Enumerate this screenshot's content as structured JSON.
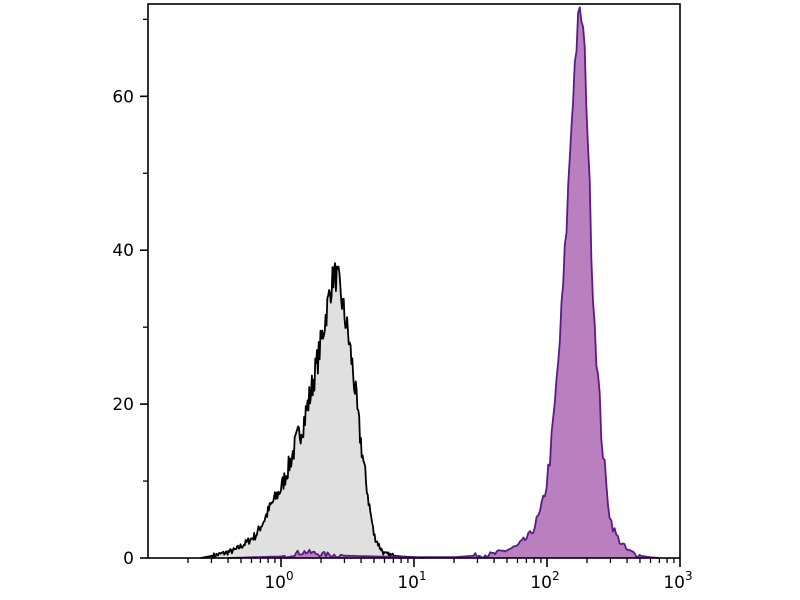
{
  "chart_data": {
    "type": "area",
    "title": "",
    "xlabel": "",
    "ylabel": "",
    "x_scale": "log",
    "xlim": [
      0.1,
      1000
    ],
    "ylim": [
      0,
      72
    ],
    "grid": false,
    "legend": "none",
    "x_ticks": [
      {
        "value": 1,
        "base": "10",
        "exp": "0"
      },
      {
        "value": 10,
        "base": "10",
        "exp": "1"
      },
      {
        "value": 100,
        "base": "10",
        "exp": "2"
      },
      {
        "value": 1000,
        "base": "10",
        "exp": "3"
      }
    ],
    "y_ticks": [
      {
        "value": 0,
        "label": "0"
      },
      {
        "value": 20,
        "label": "20"
      },
      {
        "value": 40,
        "label": "40"
      },
      {
        "value": 60,
        "label": "60"
      }
    ],
    "series": [
      {
        "style": "control",
        "fill": "#e0e0e0",
        "stroke": "#000000",
        "x": [
          0.25,
          0.35,
          0.45,
          0.55,
          0.65,
          0.75,
          0.85,
          1.0,
          1.15,
          1.3,
          1.5,
          1.7,
          1.9,
          2.1,
          2.3,
          2.5,
          2.7,
          2.9,
          3.2,
          3.5,
          3.8,
          4.2,
          4.6,
          5.0,
          5.5,
          6.0,
          7.0,
          8.0,
          10.0,
          12.0
        ],
        "y": [
          0,
          0.5,
          1,
          2,
          3,
          5,
          7,
          9,
          12,
          15,
          18,
          22,
          26,
          30,
          34,
          37,
          36,
          33,
          29,
          24,
          18,
          12,
          7,
          3,
          1.5,
          0.5,
          0.3,
          0.2,
          0.1,
          0
        ]
      },
      {
        "style": "sample",
        "fill": "#b97fbe",
        "stroke": "#5b1a86",
        "x": [
          0.4,
          1.0,
          1.5,
          2.0,
          3.0,
          5.0,
          10.0,
          20.0,
          40.0,
          60.0,
          75.0,
          90.0,
          100.0,
          110.0,
          120.0,
          130.0,
          140.0,
          150.0,
          160.0,
          170.0,
          180.0,
          190.0,
          200.0,
          210.0,
          220.0,
          240.0,
          260.0,
          280.0,
          300.0,
          330.0,
          360.0,
          400.0,
          450.0,
          500.0,
          600.0,
          700.0
        ],
        "y": [
          0,
          0.2,
          0.8,
          0.5,
          0.3,
          0.2,
          0.1,
          0.1,
          0.5,
          1.5,
          3,
          6,
          10,
          16,
          24,
          33,
          43,
          54,
          63,
          69,
          71,
          67,
          58,
          47,
          36,
          24,
          15,
          9,
          5,
          3,
          2,
          1,
          0.6,
          0.3,
          0.1,
          0
        ]
      }
    ]
  }
}
